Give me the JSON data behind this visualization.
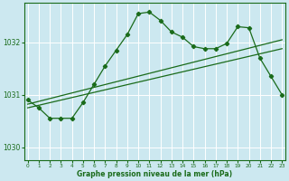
{
  "xlabel": "Graphe pression niveau de la mer (hPa)",
  "bg_color": "#cce8f0",
  "grid_color": "#ffffff",
  "line_color": "#1a6b1a",
  "ylim": [
    1029.75,
    1032.75
  ],
  "yticks": [
    1030,
    1031,
    1032
  ],
  "xlim": [
    -0.3,
    23.3
  ],
  "xticks": [
    0,
    1,
    2,
    3,
    4,
    5,
    6,
    7,
    8,
    9,
    10,
    11,
    12,
    13,
    14,
    15,
    16,
    17,
    18,
    19,
    20,
    21,
    22,
    23
  ],
  "series1_x": [
    0,
    1,
    2,
    3,
    4,
    5,
    6,
    7,
    8,
    9,
    10,
    11,
    12,
    13,
    14,
    15,
    16,
    17,
    18,
    19,
    20,
    21,
    22,
    23
  ],
  "series1_y": [
    1030.9,
    1030.75,
    1030.55,
    1030.55,
    1030.55,
    1030.85,
    1031.2,
    1031.55,
    1031.85,
    1032.15,
    1032.55,
    1032.58,
    1032.42,
    1032.2,
    1032.1,
    1031.92,
    1031.88,
    1031.88,
    1031.98,
    1032.3,
    1032.28,
    1031.7,
    1031.35,
    1031.0
  ],
  "series2_x": [
    0,
    23
  ],
  "series2_y": [
    1030.75,
    1031.88
  ],
  "series3_x": [
    0,
    23
  ],
  "series3_y": [
    1030.82,
    1032.05
  ],
  "marker_style": "D",
  "marker_size": 2.2,
  "line_width": 0.9
}
